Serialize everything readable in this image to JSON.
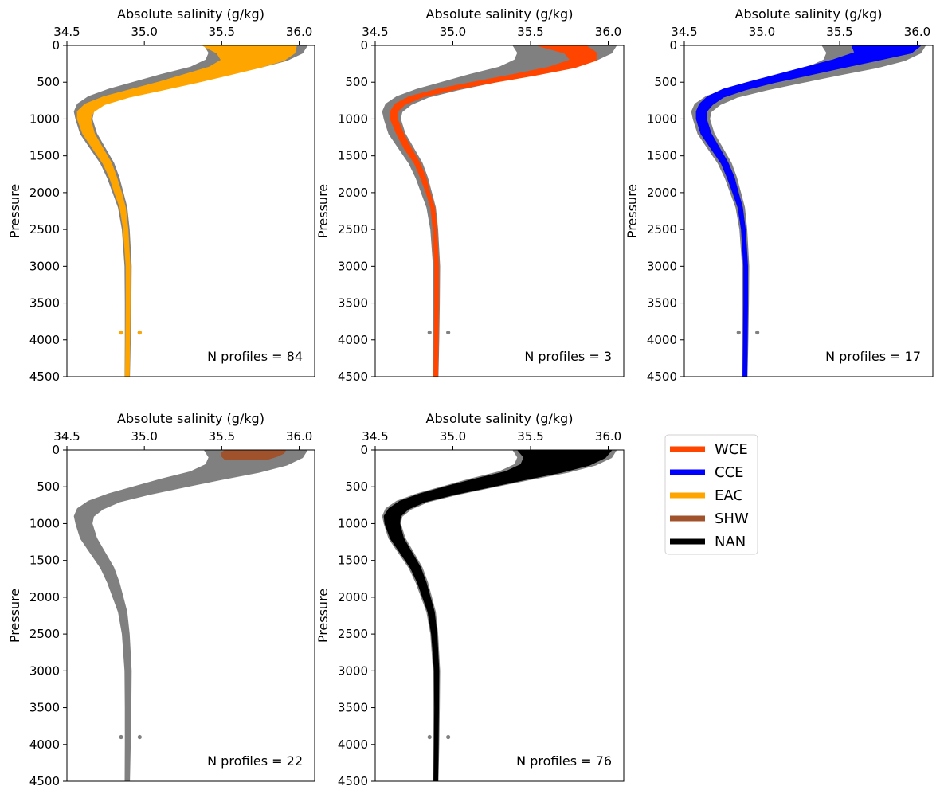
{
  "chart_data": [
    {
      "type": "scatter",
      "xlabel": "Absolute salinity (g/kg)",
      "ylabel": "Pressure",
      "xlim": [
        34.5,
        36.1
      ],
      "ylim": [
        4500,
        0
      ],
      "xticks": [
        "34.5",
        "35.0",
        "35.5",
        "36.0"
      ],
      "yticks": [
        "0",
        "500",
        "1000",
        "1500",
        "2000",
        "2500",
        "3000",
        "3500",
        "4000",
        "4500"
      ],
      "annotation": "N profiles = 84",
      "highlight_class": "EAC",
      "highlight_color": "#ffa500",
      "highlight_profile": {
        "pressure": [
          0,
          100,
          200,
          300,
          400,
          500,
          600,
          700,
          800,
          900,
          1000,
          1200,
          1400,
          1600,
          1800,
          2000,
          2200,
          2500,
          3000,
          3500,
          4000,
          4500
        ],
        "salinity": [
          35.68,
          35.72,
          35.7,
          35.58,
          35.4,
          35.22,
          35.02,
          34.82,
          34.68,
          34.62,
          34.61,
          34.64,
          34.7,
          34.76,
          34.8,
          34.83,
          34.86,
          34.88,
          34.895,
          34.895,
          34.893,
          34.89
        ],
        "spread": [
          0.3,
          0.25,
          0.2,
          0.16,
          0.14,
          0.12,
          0.1,
          0.08,
          0.06,
          0.05,
          0.04,
          0.035,
          0.03,
          0.025,
          0.02,
          0.02,
          0.015,
          0.012,
          0.01,
          0.01,
          0.01,
          0.01
        ]
      },
      "highlight_scatter": [
        [
          34.85,
          3900
        ],
        [
          34.97,
          3900
        ],
        [
          35.47,
          5
        ],
        [
          35.52,
          5
        ],
        [
          35.62,
          15
        ],
        [
          35.7,
          30
        ],
        [
          35.78,
          25
        ],
        [
          35.5,
          10
        ]
      ]
    },
    {
      "type": "scatter",
      "xlabel": "Absolute salinity (g/kg)",
      "ylabel": "Pressure",
      "xlim": [
        34.5,
        36.1
      ],
      "ylim": [
        4500,
        0
      ],
      "xticks": [
        "34.5",
        "35.0",
        "35.5",
        "36.0"
      ],
      "yticks": [
        "0",
        "500",
        "1000",
        "1500",
        "2000",
        "2500",
        "3000",
        "3500",
        "4000",
        "4500"
      ],
      "annotation": "N profiles = 3",
      "highlight_class": "WCE",
      "highlight_color": "#ff4500",
      "highlight_profile": {
        "pressure": [
          0,
          100,
          200,
          300,
          400,
          500,
          600,
          700,
          800,
          900,
          1000,
          1200,
          1400,
          1600,
          1800,
          2000,
          2200,
          2500,
          3000,
          3500,
          4000,
          4500
        ],
        "salinity": [
          35.7,
          35.82,
          35.84,
          35.7,
          35.46,
          35.2,
          34.95,
          34.76,
          34.66,
          34.62,
          34.62,
          34.66,
          34.71,
          34.77,
          34.81,
          34.84,
          34.87,
          34.885,
          34.895,
          34.895,
          34.893,
          34.89
        ],
        "spread": [
          0.15,
          0.1,
          0.08,
          0.08,
          0.07,
          0.06,
          0.05,
          0.04,
          0.03,
          0.02,
          0.02,
          0.02,
          0.02,
          0.015,
          0.015,
          0.01,
          0.01,
          0.01,
          0.01,
          0.01,
          0.01,
          0.01
        ]
      },
      "highlight_scatter": []
    },
    {
      "type": "scatter",
      "xlabel": "Absolute salinity (g/kg)",
      "ylabel": "Pressure",
      "xlim": [
        34.5,
        36.1
      ],
      "ylim": [
        4500,
        0
      ],
      "xticks": [
        "34.5",
        "35.0",
        "35.5",
        "36.0"
      ],
      "yticks": [
        "0",
        "500",
        "1000",
        "1500",
        "2000",
        "2500",
        "3000",
        "3500",
        "4000",
        "4500"
      ],
      "annotation": "N profiles = 17",
      "highlight_class": "CCE",
      "highlight_color": "#0000ff",
      "highlight_profile": {
        "pressure": [
          0,
          100,
          200,
          300,
          400,
          500,
          600,
          700,
          800,
          900,
          1000,
          1200,
          1400,
          1600,
          1800,
          2000,
          2200,
          2500,
          3000,
          3500,
          4000,
          4500
        ],
        "salinity": [
          35.8,
          35.78,
          35.6,
          35.4,
          35.2,
          35.0,
          34.82,
          34.7,
          34.64,
          34.61,
          34.61,
          34.64,
          34.7,
          34.76,
          34.8,
          34.83,
          34.86,
          34.88,
          34.895,
          34.895,
          34.893,
          34.89
        ],
        "spread": [
          0.22,
          0.18,
          0.14,
          0.12,
          0.1,
          0.08,
          0.07,
          0.05,
          0.04,
          0.03,
          0.03,
          0.03,
          0.025,
          0.02,
          0.02,
          0.015,
          0.012,
          0.01,
          0.01,
          0.01,
          0.01,
          0.01
        ]
      },
      "highlight_scatter": []
    },
    {
      "type": "scatter",
      "xlabel": "Absolute salinity (g/kg)",
      "ylabel": "Pressure",
      "xlim": [
        34.5,
        36.1
      ],
      "ylim": [
        4500,
        0
      ],
      "xticks": [
        "34.5",
        "35.0",
        "35.5",
        "36.0"
      ],
      "yticks": [
        "0",
        "500",
        "1000",
        "1500",
        "2000",
        "2500",
        "3000",
        "3500",
        "4000",
        "4500"
      ],
      "annotation": "N profiles = 22",
      "highlight_class": "SHW",
      "highlight_color": "#a0522d",
      "highlight_profile": {
        "pressure": [
          0,
          40,
          80,
          120
        ],
        "salinity": [
          35.72,
          35.7,
          35.68,
          35.66
        ],
        "spread": [
          0.19,
          0.2,
          0.18,
          0.14
        ]
      },
      "highlight_scatter": []
    },
    {
      "type": "scatter",
      "xlabel": "Absolute salinity (g/kg)",
      "ylabel": "Pressure",
      "xlim": [
        34.5,
        36.1
      ],
      "ylim": [
        4500,
        0
      ],
      "xticks": [
        "34.5",
        "35.0",
        "35.5",
        "36.0"
      ],
      "yticks": [
        "0",
        "500",
        "1000",
        "1500",
        "2000",
        "2500",
        "3000",
        "3500",
        "4000",
        "4500"
      ],
      "annotation": "N profiles = 76",
      "highlight_class": "NAN",
      "highlight_color": "#000000",
      "highlight_profile": {
        "pressure": [
          0,
          100,
          200,
          300,
          400,
          500,
          600,
          700,
          800,
          900,
          1000,
          1200,
          1400,
          1600,
          1800,
          2000,
          2200,
          2500,
          3000,
          3500,
          4000,
          4500
        ],
        "salinity": [
          35.72,
          35.72,
          35.66,
          35.52,
          35.3,
          35.1,
          34.9,
          34.74,
          34.65,
          34.61,
          34.61,
          34.64,
          34.7,
          34.76,
          34.8,
          34.83,
          34.86,
          34.88,
          34.895,
          34.895,
          34.893,
          34.89
        ],
        "spread": [
          0.3,
          0.26,
          0.22,
          0.18,
          0.16,
          0.14,
          0.11,
          0.08,
          0.06,
          0.05,
          0.045,
          0.04,
          0.035,
          0.03,
          0.025,
          0.022,
          0.018,
          0.015,
          0.012,
          0.01,
          0.01,
          0.01
        ]
      },
      "highlight_scatter": []
    }
  ],
  "background_profile": {
    "color": "#808080",
    "pressure": [
      0,
      100,
      200,
      300,
      400,
      500,
      600,
      700,
      800,
      900,
      1000,
      1200,
      1400,
      1600,
      1800,
      2000,
      2200,
      2500,
      3000,
      3500,
      4000,
      4500
    ],
    "salinity": [
      35.72,
      35.72,
      35.66,
      35.52,
      35.3,
      35.1,
      34.9,
      34.74,
      34.65,
      34.61,
      34.61,
      34.64,
      34.7,
      34.76,
      34.8,
      34.83,
      34.86,
      34.88,
      34.895,
      34.895,
      34.893,
      34.89
    ],
    "spread": [
      0.33,
      0.3,
      0.26,
      0.22,
      0.19,
      0.16,
      0.13,
      0.1,
      0.08,
      0.06,
      0.05,
      0.05,
      0.045,
      0.04,
      0.035,
      0.03,
      0.025,
      0.02,
      0.018,
      0.016,
      0.014,
      0.012
    ],
    "scatter": [
      [
        34.85,
        3900
      ],
      [
        34.97,
        3900
      ],
      [
        35.47,
        5
      ],
      [
        35.52,
        5
      ],
      [
        35.62,
        15
      ],
      [
        35.7,
        30
      ],
      [
        35.78,
        25
      ],
      [
        35.5,
        10
      ],
      [
        35.45,
        8
      ],
      [
        35.55,
        12
      ]
    ]
  },
  "legend": {
    "placement": "right of bottom row",
    "items": [
      {
        "label": "WCE",
        "color": "#ff4500"
      },
      {
        "label": "CCE",
        "color": "#0000ff"
      },
      {
        "label": "EAC",
        "color": "#ffa500"
      },
      {
        "label": "SHW",
        "color": "#a0522d"
      },
      {
        "label": "NAN",
        "color": "#000000"
      }
    ]
  }
}
